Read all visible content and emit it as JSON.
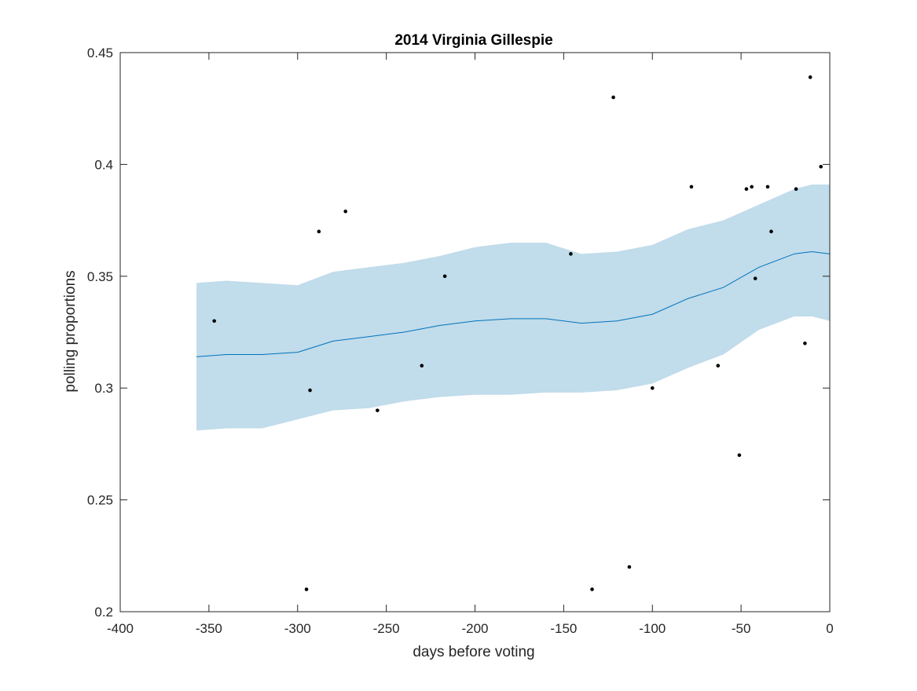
{
  "chart_data": {
    "type": "scatter",
    "title": "2014 Virginia Gillespie",
    "xlabel": "days before voting",
    "ylabel": "polling proportions",
    "xlim": [
      -400,
      0
    ],
    "ylim": [
      0.2,
      0.45
    ],
    "xticks": [
      -400,
      -350,
      -300,
      -250,
      -200,
      -150,
      -100,
      -50,
      0
    ],
    "yticks": [
      0.2,
      0.25,
      0.3,
      0.35,
      0.4,
      0.45
    ],
    "xtick_labels": [
      "-400",
      "-350",
      "-300",
      "-250",
      "-200",
      "-150",
      "-100",
      "-50",
      "0"
    ],
    "ytick_labels": [
      "0.2",
      "0.25",
      "0.3",
      "0.35",
      "0.4",
      "0.45"
    ],
    "grid": false,
    "colors": {
      "band": "#c1dcea",
      "trend": "#0072bd",
      "points": "#000000",
      "axes": "#262626"
    },
    "points": {
      "x": [
        -347,
        -295,
        -293,
        -288,
        -273,
        -255,
        -230,
        -217,
        -146,
        -122,
        -113,
        -100,
        -78,
        -63,
        -51,
        -47,
        -44,
        -42,
        -35,
        -33,
        -19,
        -14,
        -11,
        -5,
        -134
      ],
      "y": [
        0.33,
        0.21,
        0.299,
        0.37,
        0.379,
        0.29,
        0.31,
        0.35,
        0.36,
        0.43,
        0.22,
        0.3,
        0.39,
        0.31,
        0.27,
        0.389,
        0.39,
        0.349,
        0.39,
        0.37,
        0.389,
        0.32,
        0.439,
        0.399,
        0.21
      ]
    },
    "trend": {
      "x": [
        -357,
        -340,
        -320,
        -300,
        -280,
        -260,
        -240,
        -220,
        -200,
        -180,
        -160,
        -140,
        -120,
        -100,
        -80,
        -60,
        -40,
        -20,
        -10,
        0
      ],
      "y": [
        0.314,
        0.315,
        0.315,
        0.316,
        0.321,
        0.323,
        0.325,
        0.328,
        0.33,
        0.331,
        0.331,
        0.329,
        0.33,
        0.333,
        0.34,
        0.345,
        0.354,
        0.36,
        0.361,
        0.36
      ]
    },
    "band": {
      "x": [
        -357,
        -340,
        -320,
        -300,
        -280,
        -260,
        -240,
        -220,
        -200,
        -180,
        -160,
        -140,
        -120,
        -100,
        -80,
        -60,
        -40,
        -20,
        -10,
        0
      ],
      "upper": [
        0.347,
        0.348,
        0.347,
        0.346,
        0.352,
        0.354,
        0.356,
        0.359,
        0.363,
        0.365,
        0.365,
        0.36,
        0.361,
        0.364,
        0.371,
        0.375,
        0.382,
        0.389,
        0.391,
        0.391
      ],
      "lower": [
        0.281,
        0.282,
        0.282,
        0.286,
        0.29,
        0.291,
        0.294,
        0.296,
        0.297,
        0.297,
        0.298,
        0.298,
        0.299,
        0.302,
        0.309,
        0.315,
        0.326,
        0.332,
        0.332,
        0.33
      ]
    }
  }
}
